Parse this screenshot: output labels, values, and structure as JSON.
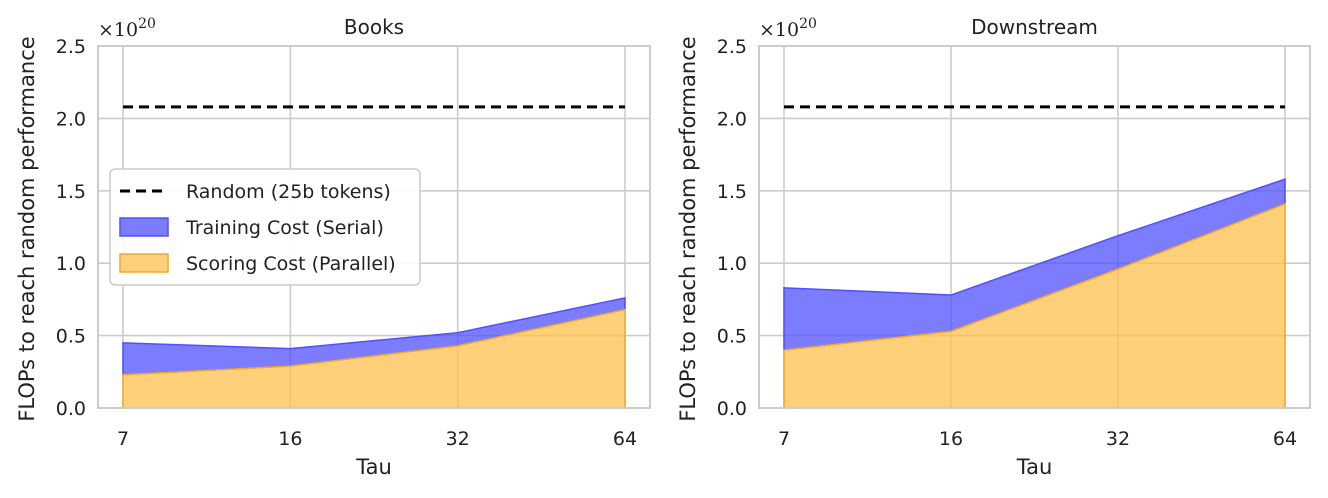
{
  "chart_data": [
    {
      "type": "area",
      "title": "Books",
      "xlabel": "Tau",
      "ylabel": "FLOPs to reach random performance",
      "multiplier": "×10",
      "multiplier_exp": "20",
      "x": [
        7,
        16,
        32,
        64
      ],
      "xticks": [
        "7",
        "16",
        "32",
        "64"
      ],
      "ylim": [
        0,
        2.5
      ],
      "yticks": [
        "0.0",
        "0.5",
        "1.0",
        "1.5",
        "2.0",
        "2.5"
      ],
      "series": [
        {
          "name": "Random (25b tokens)",
          "kind": "dashed-line",
          "color": "#000000",
          "values": [
            2.08,
            2.08,
            2.08,
            2.08
          ]
        },
        {
          "name": "Training Cost (Serial)",
          "kind": "stacked-area",
          "color": "#5050ff",
          "values": [
            0.45,
            0.41,
            0.52,
            0.76
          ]
        },
        {
          "name": "Scoring Cost (Parallel)",
          "kind": "area",
          "color": "#ffc04d",
          "values": [
            0.23,
            0.29,
            0.43,
            0.68
          ]
        }
      ],
      "legend": true
    },
    {
      "type": "area",
      "title": "Downstream",
      "xlabel": "Tau",
      "ylabel": "FLOPs to reach random performance",
      "multiplier": "×10",
      "multiplier_exp": "20",
      "x": [
        7,
        16,
        32,
        64
      ],
      "xticks": [
        "7",
        "16",
        "32",
        "64"
      ],
      "ylim": [
        0,
        2.5
      ],
      "yticks": [
        "0.0",
        "0.5",
        "1.0",
        "1.5",
        "2.0",
        "2.5"
      ],
      "series": [
        {
          "name": "Random (25b tokens)",
          "kind": "dashed-line",
          "color": "#000000",
          "values": [
            2.08,
            2.08,
            2.08,
            2.08
          ]
        },
        {
          "name": "Training Cost (Serial)",
          "kind": "stacked-area",
          "color": "#5050ff",
          "values": [
            0.83,
            0.78,
            1.19,
            1.58
          ]
        },
        {
          "name": "Scoring Cost (Parallel)",
          "kind": "area",
          "color": "#ffc04d",
          "values": [
            0.4,
            0.53,
            0.96,
            1.41
          ]
        }
      ],
      "legend": false
    }
  ]
}
